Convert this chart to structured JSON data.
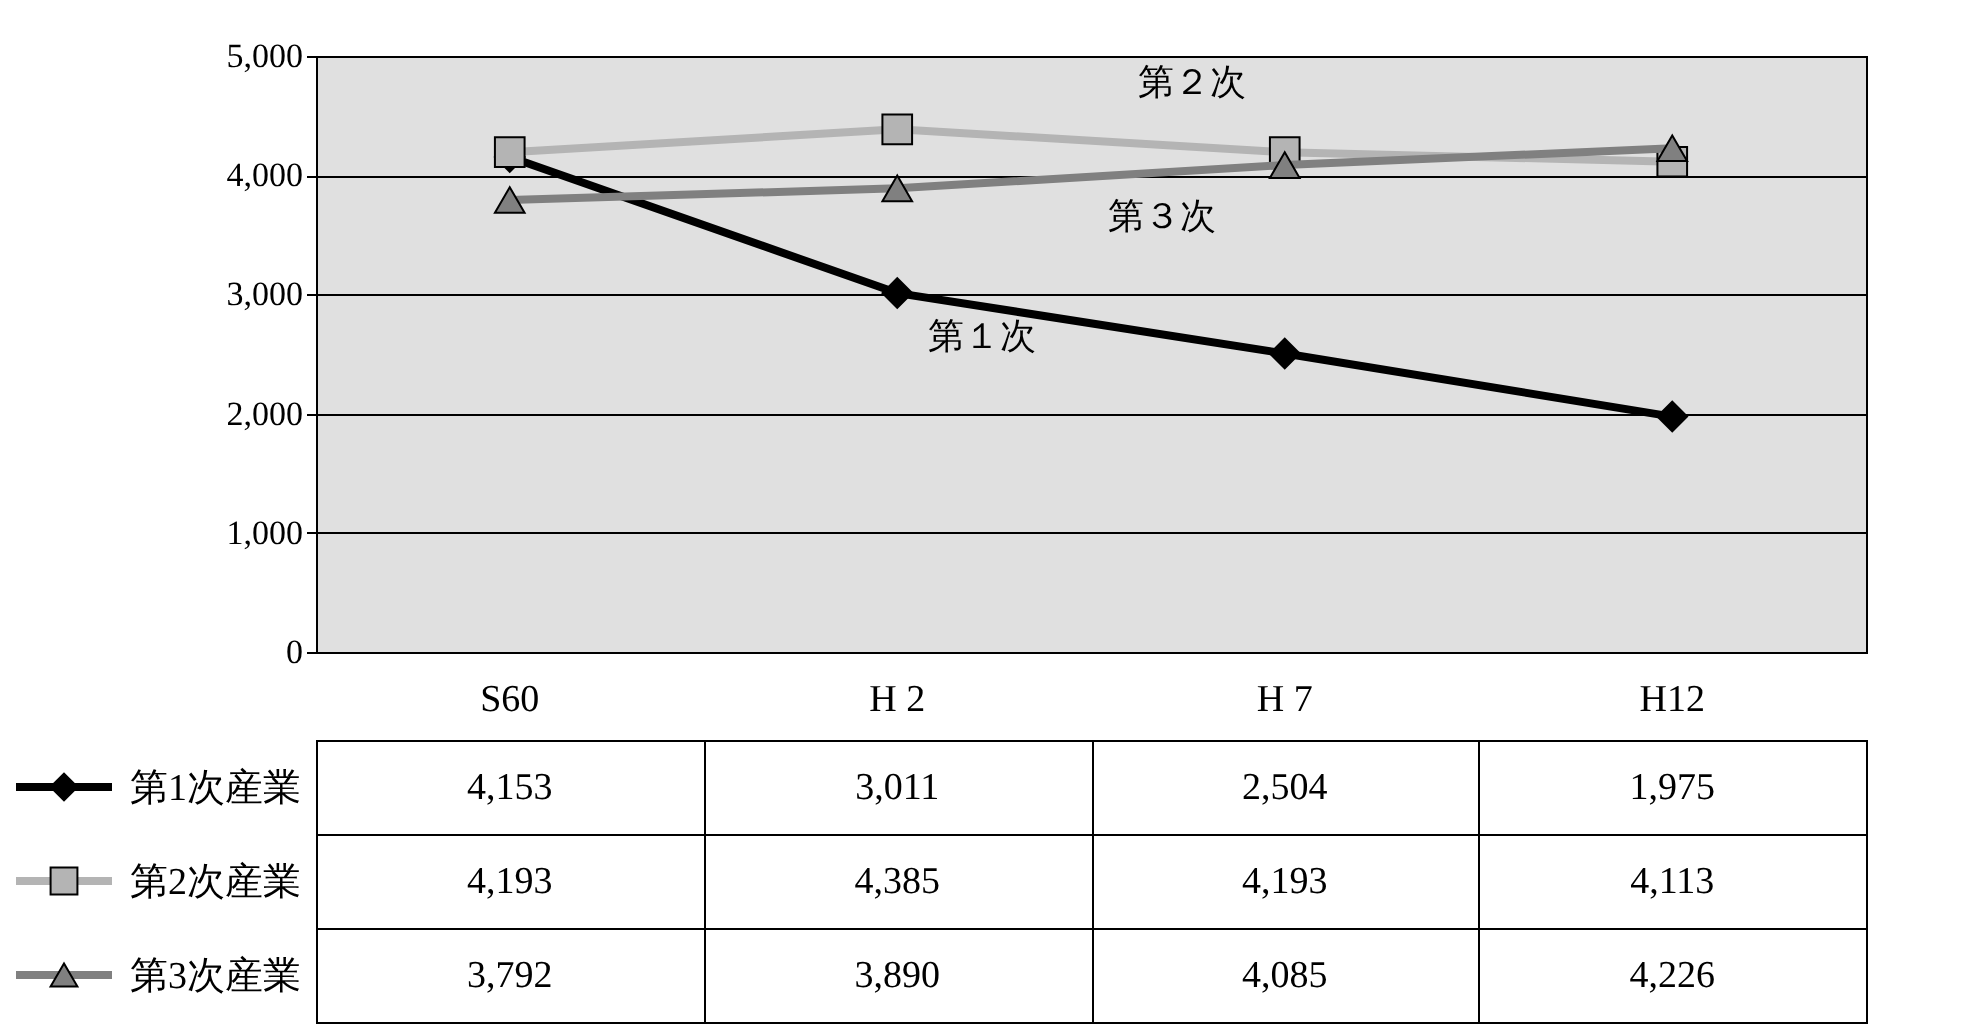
{
  "chart_data": {
    "type": "line",
    "categories": [
      "S60",
      "H 2",
      "H 7",
      "H12"
    ],
    "series": [
      {
        "name": "第1次産業",
        "color": "#000000",
        "marker": "diamond",
        "values": [
          4153,
          3011,
          2504,
          1975
        ],
        "value_labels": [
          "4,153",
          "3,011",
          "2,504",
          "1,975"
        ]
      },
      {
        "name": "第2次産業",
        "color": "#b4b4b4",
        "marker": "square",
        "values": [
          4193,
          4385,
          4193,
          4113
        ],
        "value_labels": [
          "4,193",
          "4,385",
          "4,193",
          "4,113"
        ]
      },
      {
        "name": "第3次産業",
        "color": "#808080",
        "marker": "triangle",
        "values": [
          3792,
          3890,
          4085,
          4226
        ],
        "value_labels": [
          "3,792",
          "3,890",
          "4,085",
          "4,226"
        ]
      }
    ],
    "ylim": [
      0,
      5000
    ],
    "yticks": [
      0,
      {
        "value": 1000,
        "label": "1,000"
      },
      {
        "value": 2000,
        "label": "2,000"
      },
      {
        "value": 3000,
        "label": "3,000"
      },
      {
        "value": 4000,
        "label": "4,000"
      },
      {
        "value": 5000,
        "label": "5,000"
      }
    ],
    "grid": "y",
    "legend": "bottom left",
    "line_style": "solid",
    "annotations": [
      "第２次",
      "第３次",
      "第１次"
    ]
  }
}
